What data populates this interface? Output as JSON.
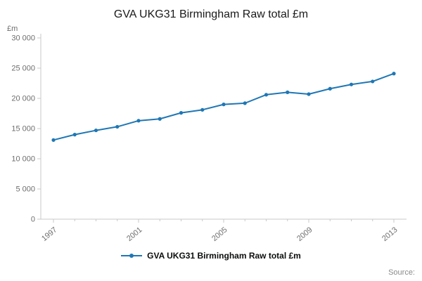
{
  "page": {
    "title": "GVA UKG31 Birmingham Raw total £m"
  },
  "legend": {
    "label": "GVA UKG31 Birmingham Raw total £m"
  },
  "footer": {
    "source_label": "Source:"
  },
  "colors": {
    "line": "#1f77b4",
    "axis": "#c8c8c8",
    "tick_text": "#6e6e6e",
    "title_text": "#1a1a1a"
  },
  "chart_data": {
    "type": "line",
    "title": "GVA UKG31 Birmingham Raw total £m",
    "unit_label": "£m",
    "x": [
      1997,
      1998,
      1999,
      2000,
      2001,
      2002,
      2003,
      2004,
      2005,
      2006,
      2007,
      2008,
      2009,
      2010,
      2011,
      2012,
      2013
    ],
    "series": [
      {
        "name": "GVA UKG31 Birmingham Raw total £m",
        "values": [
          13100,
          14000,
          14700,
          15300,
          16300,
          16600,
          17600,
          18100,
          19000,
          19200,
          20600,
          21000,
          20700,
          21600,
          22300,
          22800,
          24100
        ]
      }
    ],
    "ylim": [
      0,
      30000
    ],
    "ytick_step": 5000,
    "xtick_label_every": 4,
    "grid": false,
    "legend_position": "bottom",
    "marker": "circle"
  }
}
